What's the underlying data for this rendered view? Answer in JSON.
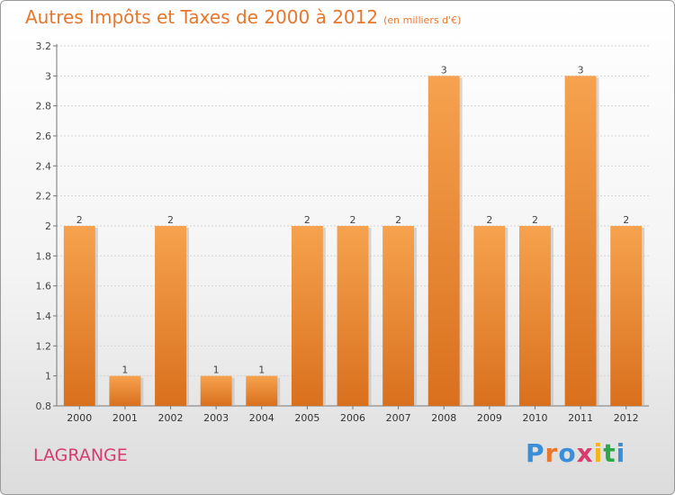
{
  "header": {
    "title": "Autres Impôts et Taxes de 2000 à 2012",
    "unit": "(en milliers d'€)"
  },
  "footer": {
    "place": "LAGRANGE",
    "logo_text": "Proxiti"
  },
  "colors": {
    "title": "#e8772c",
    "place": "#d63c6e",
    "bar_light": "#f6a24e",
    "bar_dark": "#d9701e",
    "logo": [
      "#3a8fd8",
      "#e8772c",
      "#3a8fd8",
      "#d63c6e",
      "#f2b51c",
      "#2aa84a",
      "#3a8fd8"
    ]
  },
  "chart_data": {
    "type": "bar",
    "title": "Autres Impôts et Taxes de 2000 à 2012",
    "categories": [
      "2000",
      "2001",
      "2002",
      "2003",
      "2004",
      "2005",
      "2006",
      "2007",
      "2008",
      "2009",
      "2010",
      "2011",
      "2012"
    ],
    "values": [
      2,
      1,
      2,
      1,
      1,
      2,
      2,
      2,
      3,
      2,
      2,
      3,
      2
    ],
    "value_labels": [
      "2",
      "1",
      "2",
      "1",
      "1",
      "2",
      "2",
      "2",
      "3",
      "2",
      "2",
      "3",
      "2"
    ],
    "ylim": [
      0.8,
      3.2
    ],
    "yticks": [
      0.8,
      1,
      1.2,
      1.4,
      1.6,
      1.8,
      2,
      2.2,
      2.4,
      2.6,
      2.8,
      3,
      3.2
    ],
    "ytick_labels": [
      "0.8",
      "1",
      "1.2",
      "1.4",
      "1.6",
      "1.8",
      "2",
      "2.2",
      "2.4",
      "2.6",
      "2.8",
      "3",
      "3.2"
    ],
    "grid": true,
    "legend": false
  }
}
